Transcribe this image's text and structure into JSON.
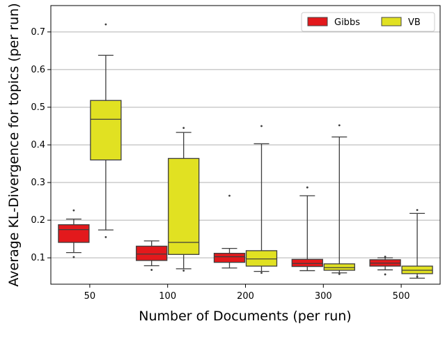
{
  "chart_data": {
    "type": "box",
    "xlabel": "Number of Documents (per run)",
    "ylabel": "Average KL-Divergence for topics (per run)",
    "categories": [
      "50",
      "100",
      "200",
      "300",
      "500"
    ],
    "ylim": [
      0.03,
      0.77
    ],
    "yticks": [
      0.1,
      0.2,
      0.3,
      0.4,
      0.5,
      0.6,
      0.7
    ],
    "ytick_labels": [
      "0.1",
      "0.2",
      "0.3",
      "0.4",
      "0.5",
      "0.6",
      "0.7"
    ],
    "grid": "horizontal",
    "legend_position": "top-right",
    "series": [
      {
        "name": "Gibbs",
        "color": "#e3191c",
        "boxes": [
          {
            "whisker_low": 0.114,
            "q1": 0.141,
            "median": 0.175,
            "q3": 0.188,
            "whisker_high": 0.203,
            "outliers": [
              0.226,
              0.102
            ]
          },
          {
            "whisker_low": 0.079,
            "q1": 0.093,
            "median": 0.11,
            "q3": 0.131,
            "whisker_high": 0.145,
            "outliers": [
              0.068
            ]
          },
          {
            "whisker_low": 0.073,
            "q1": 0.088,
            "median": 0.103,
            "q3": 0.112,
            "whisker_high": 0.125,
            "outliers": [
              0.265
            ]
          },
          {
            "whisker_low": 0.066,
            "q1": 0.077,
            "median": 0.085,
            "q3": 0.096,
            "whisker_high": 0.265,
            "outliers": [
              0.287
            ]
          },
          {
            "whisker_low": 0.068,
            "q1": 0.078,
            "median": 0.086,
            "q3": 0.095,
            "whisker_high": 0.1,
            "outliers": [
              0.056,
              0.103
            ]
          }
        ]
      },
      {
        "name": "VB",
        "color": "#e1e122",
        "boxes": [
          {
            "whisker_low": 0.174,
            "q1": 0.36,
            "median": 0.468,
            "q3": 0.518,
            "whisker_high": 0.638,
            "outliers": [
              0.72,
              0.155
            ]
          },
          {
            "whisker_low": 0.071,
            "q1": 0.109,
            "median": 0.141,
            "q3": 0.364,
            "whisker_high": 0.433,
            "outliers": [
              0.445,
              0.066
            ]
          },
          {
            "whisker_low": 0.064,
            "q1": 0.078,
            "median": 0.097,
            "q3": 0.119,
            "whisker_high": 0.403,
            "outliers": [
              0.45,
              0.06
            ]
          },
          {
            "whisker_low": 0.06,
            "q1": 0.067,
            "median": 0.074,
            "q3": 0.084,
            "whisker_high": 0.421,
            "outliers": [
              0.452,
              0.057
            ]
          },
          {
            "whisker_low": 0.046,
            "q1": 0.058,
            "median": 0.067,
            "q3": 0.078,
            "whisker_high": 0.218,
            "outliers": [
              0.227,
              0.05
            ]
          }
        ]
      }
    ]
  }
}
